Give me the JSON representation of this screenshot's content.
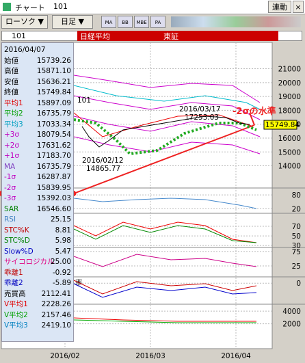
{
  "window": {
    "title": "チャート",
    "code": "101",
    "link_button": "連動"
  },
  "toolbar": {
    "chart_type": "ローソク ▼",
    "period": "日足 ▼",
    "icons": [
      "MA",
      "BB",
      "MBE",
      "PA"
    ]
  },
  "symbol_bar": {
    "code": "101",
    "name": "日経平均",
    "market": "東証"
  },
  "info_panel": {
    "date": "2016/04/07",
    "rows": [
      {
        "label": "始値",
        "value": "15739.26",
        "color": "#000000"
      },
      {
        "label": "高値",
        "value": "15871.10",
        "color": "#000000"
      },
      {
        "label": "安値",
        "value": "15636.21",
        "color": "#000000"
      },
      {
        "label": "終値",
        "value": "15749.84",
        "color": "#000000"
      },
      {
        "label": "平均1",
        "value": "15897.09",
        "color": "#e00000"
      },
      {
        "label": "平均2",
        "value": "16735.79",
        "color": "#00a000"
      },
      {
        "label": "平均3",
        "value": "17033.34",
        "color": "#00a0c0"
      },
      {
        "label": "+3σ",
        "value": "18079.54",
        "color": "#c000c0"
      },
      {
        "label": "+2σ",
        "value": "17631.62",
        "color": "#c000c0"
      },
      {
        "label": "+1σ",
        "value": "17183.70",
        "color": "#c000c0"
      },
      {
        "label": "MA",
        "value": "16735.79",
        "color": "#8040c0"
      },
      {
        "label": "-1σ",
        "value": "16287.87",
        "color": "#c000c0"
      },
      {
        "label": "-2σ",
        "value": "15839.95",
        "color": "#c000c0"
      },
      {
        "label": "-3σ",
        "value": "15392.03",
        "color": "#c000c0"
      },
      {
        "label": "SAR",
        "value": "16546.60",
        "color": "#008000"
      },
      {
        "label": "RSI",
        "value": "25.15",
        "color": "#4080c0"
      },
      {
        "label": "STC%K",
        "value": "8.81",
        "color": "#c00000"
      },
      {
        "label": "STC%D",
        "value": "5.98",
        "color": "#008000"
      },
      {
        "label": "Slow%D",
        "value": "5.47",
        "color": "#0000c0"
      },
      {
        "label": "サイコロジカル",
        "value": "25.00",
        "color": "#e00080"
      },
      {
        "label": "乖離1",
        "value": "-0.92",
        "color": "#c00000"
      },
      {
        "label": "乖離2",
        "value": "-5.89",
        "color": "#0000c0"
      },
      {
        "label": "売買高",
        "value": "2112.41",
        "color": "#000000"
      },
      {
        "label": "V平均1",
        "value": "2228.26",
        "color": "#e00000"
      },
      {
        "label": "V平均2",
        "value": "2157.46",
        "color": "#00a000"
      },
      {
        "label": "V平均3",
        "value": "2419.10",
        "color": "#0080c0"
      }
    ]
  },
  "panels": [
    {
      "ylim": [
        12400,
        22900
      ],
      "yticks": [
        21000,
        20000,
        19000,
        18000,
        17000,
        16000,
        15000,
        14000
      ]
    },
    {
      "ylim": [
        0,
        110
      ],
      "yticks": [
        80,
        20
      ]
    },
    {
      "ylim": [
        26,
        97
      ],
      "yticks": [
        70,
        50,
        30
      ]
    },
    {
      "ylim": [
        -13,
        89
      ],
      "yticks": [
        75,
        25
      ]
    },
    {
      "ylim": [
        -10,
        3
      ],
      "yticks": [
        0
      ],
      "label": "率"
    },
    {
      "ylim": [
        0,
        5100
      ],
      "yticks": [
        4000,
        2000
      ]
    }
  ],
  "xticks": [
    "2016/02",
    "2016/03",
    "2016/04"
  ],
  "annotations": {
    "high_date": "2016/03/17",
    "high_value": "17253.03",
    "low_date": "2016/02/12",
    "low_value": "14865.77",
    "top_left": "101",
    "callout": "-2σの水準",
    "last_price": "15749.84"
  }
}
